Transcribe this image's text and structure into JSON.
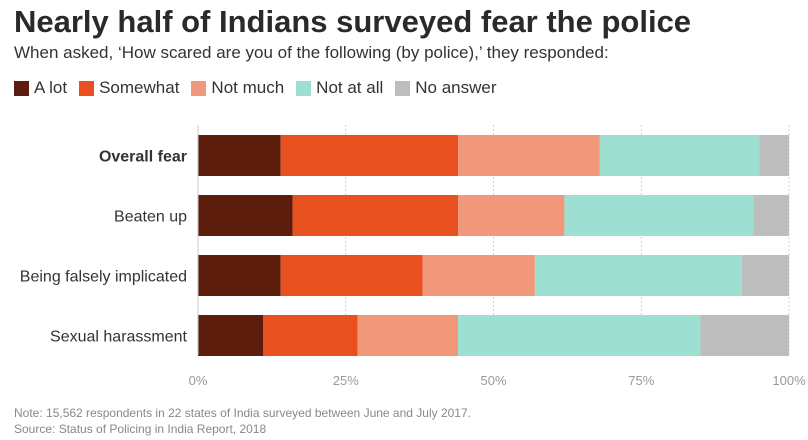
{
  "title": "Nearly half of Indians surveyed fear the police",
  "subtitle": "When asked, ‘How scared are you of the following (by police),’ they responded:",
  "legend": [
    {
      "label": "A lot",
      "color": "#5c1d0d"
    },
    {
      "label": "Somewhat",
      "color": "#e8501f"
    },
    {
      "label": "Not much",
      "color": "#f2987a"
    },
    {
      "label": "Not at all",
      "color": "#9ddfd1"
    },
    {
      "label": "No answer",
      "color": "#bdbdbd"
    }
  ],
  "chart_data": {
    "type": "bar",
    "orientation": "horizontal",
    "stacked": true,
    "categories": [
      "Overall fear",
      "Beaten up",
      "Being falsely implicated",
      "Sexual harassment"
    ],
    "bold_categories": [
      "Overall fear"
    ],
    "series": [
      {
        "name": "A lot",
        "color": "#5c1d0d",
        "values": [
          14,
          16,
          14,
          11
        ]
      },
      {
        "name": "Somewhat",
        "color": "#e8501f",
        "values": [
          30,
          28,
          24,
          16
        ]
      },
      {
        "name": "Not much",
        "color": "#f2987a",
        "values": [
          24,
          18,
          19,
          17
        ]
      },
      {
        "name": "Not at all",
        "color": "#9ddfd1",
        "values": [
          27,
          32,
          35,
          41
        ]
      },
      {
        "name": "No answer",
        "color": "#bdbdbd",
        "values": [
          5,
          6,
          8,
          15
        ]
      }
    ],
    "xlim": [
      0,
      100
    ],
    "xticks": [
      0,
      25,
      50,
      75,
      100
    ],
    "xtick_labels": [
      "0%",
      "25%",
      "50%",
      "75%",
      "100%"
    ],
    "grid": true
  },
  "note": "Note: 15,562 respondents in 22 states of India surveyed between June and July 2017.",
  "source": "Source:  Status of Policing in India Report, 2018"
}
